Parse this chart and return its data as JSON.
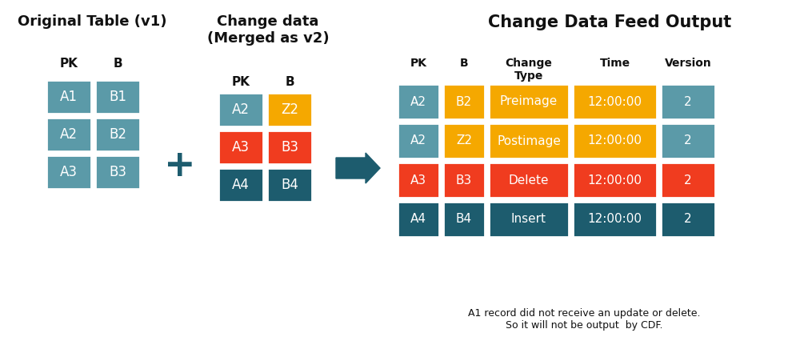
{
  "bg_color": "#ffffff",
  "teal_light": "#5b9aa8",
  "teal_dark": "#1d5c6e",
  "orange": "#f5a800",
  "red": "#f03c1f",
  "white": "#ffffff",
  "black": "#111111",
  "title1": "Original Table (v1)",
  "title2": "Change data\n(Merged as v2)",
  "title3": "Change Data Feed Output",
  "orig_headers": [
    "PK",
    "B"
  ],
  "orig_rows": [
    [
      "A1",
      "B1"
    ],
    [
      "A2",
      "B2"
    ],
    [
      "A3",
      "B3"
    ]
  ],
  "orig_colors": [
    [
      "#5b9aa8",
      "#5b9aa8"
    ],
    [
      "#5b9aa8",
      "#5b9aa8"
    ],
    [
      "#5b9aa8",
      "#5b9aa8"
    ]
  ],
  "change_headers": [
    "PK",
    "B"
  ],
  "change_rows": [
    [
      "A2",
      "Z2"
    ],
    [
      "A3",
      "B3"
    ],
    [
      "A4",
      "B4"
    ]
  ],
  "change_colors": [
    [
      "#5b9aa8",
      "#f5a800"
    ],
    [
      "#f03c1f",
      "#f03c1f"
    ],
    [
      "#1d5c6e",
      "#1d5c6e"
    ]
  ],
  "output_headers": [
    "PK",
    "B",
    "Change\nType",
    "Time",
    "Version"
  ],
  "output_rows": [
    [
      "A2",
      "B2",
      "Preimage",
      "12:00:00",
      "2"
    ],
    [
      "A2",
      "Z2",
      "Postimage",
      "12:00:00",
      "2"
    ],
    [
      "A3",
      "B3",
      "Delete",
      "12:00:00",
      "2"
    ],
    [
      "A4",
      "B4",
      "Insert",
      "12:00:00",
      "2"
    ]
  ],
  "output_row_colors": [
    [
      "#5b9aa8",
      "#f5a800",
      "#f5a800",
      "#f5a800",
      "#5b9aa8"
    ],
    [
      "#5b9aa8",
      "#f5a800",
      "#f5a800",
      "#f5a800",
      "#5b9aa8"
    ],
    [
      "#f03c1f",
      "#f03c1f",
      "#f03c1f",
      "#f03c1f",
      "#f03c1f"
    ],
    [
      "#1d5c6e",
      "#1d5c6e",
      "#1d5c6e",
      "#1d5c6e",
      "#1d5c6e"
    ]
  ],
  "footnote": "A1 record did not receive an update or delete.\nSo it will not be output  by CDF."
}
